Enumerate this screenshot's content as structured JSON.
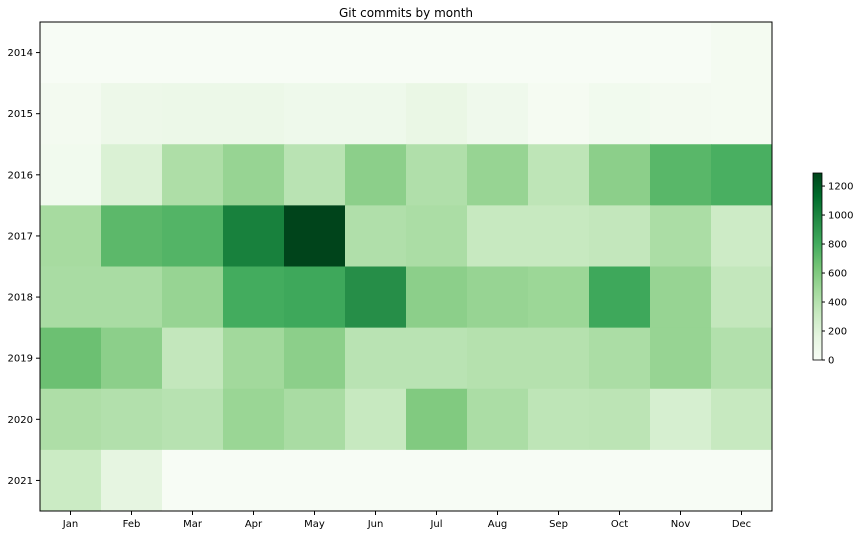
{
  "chart_data": {
    "type": "heatmap",
    "title": "Git commits by month",
    "xlabel": "",
    "ylabel": "",
    "x_categories": [
      "Jan",
      "Feb",
      "Mar",
      "Apr",
      "May",
      "Jun",
      "Jul",
      "Aug",
      "Sep",
      "Oct",
      "Nov",
      "Dec"
    ],
    "y_categories": [
      "2014",
      "2015",
      "2016",
      "2017",
      "2018",
      "2019",
      "2020",
      "2021"
    ],
    "values": [
      [
        0,
        0,
        0,
        0,
        0,
        0,
        0,
        0,
        0,
        0,
        0,
        30
      ],
      [
        40,
        90,
        100,
        100,
        80,
        80,
        120,
        70,
        20,
        50,
        40,
        30
      ],
      [
        50,
        220,
        430,
        520,
        380,
        560,
        420,
        520,
        360,
        560,
        730,
        780
      ],
      [
        460,
        720,
        750,
        1020,
        1290,
        420,
        440,
        320,
        320,
        340,
        440,
        290
      ],
      [
        450,
        450,
        520,
        800,
        820,
        950,
        560,
        520,
        500,
        820,
        520,
        340
      ],
      [
        670,
        560,
        340,
        480,
        560,
        380,
        380,
        400,
        400,
        440,
        520,
        410
      ],
      [
        430,
        410,
        390,
        510,
        450,
        320,
        600,
        440,
        360,
        370,
        240,
        320
      ],
      [
        300,
        150,
        0,
        0,
        0,
        0,
        0,
        0,
        0,
        0,
        0,
        0
      ]
    ],
    "colorbar": {
      "min": 0,
      "max": 1290,
      "ticks": [
        "0",
        "200",
        "400",
        "600",
        "800",
        "1000",
        "1200"
      ],
      "tick_values": [
        0,
        200,
        400,
        600,
        800,
        1000,
        1200
      ]
    },
    "colormap": "Greens",
    "grid": false
  }
}
